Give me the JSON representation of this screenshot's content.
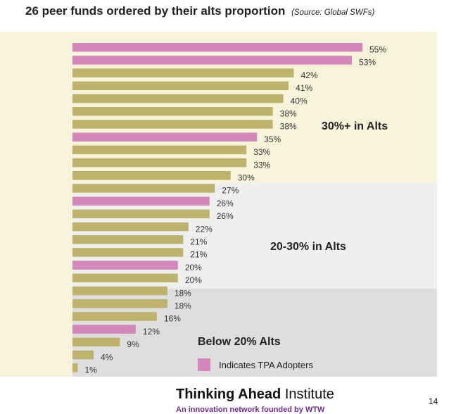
{
  "title": "26 peer funds ordered by their alts proportion",
  "source": "(Source: Global SWFs)",
  "colors": {
    "tpa": "#d487b8",
    "other": "#bdb36c"
  },
  "chart_data": {
    "type": "bar",
    "orientation": "horizontal",
    "title": "26 peer funds ordered by their alts proportion",
    "xlabel": "",
    "ylabel": "",
    "xlim": [
      0,
      60
    ],
    "grid": false,
    "values": [
      55,
      53,
      42,
      41,
      40,
      38,
      38,
      35,
      33,
      33,
      30,
      27,
      26,
      26,
      22,
      21,
      21,
      20,
      20,
      18,
      18,
      16,
      12,
      9,
      4,
      1
    ],
    "labels": [
      "55%",
      "53%",
      "42%",
      "41%",
      "40%",
      "38%",
      "38%",
      "35%",
      "33%",
      "33%",
      "30%",
      "27%",
      "26%",
      "26%",
      "22%",
      "21%",
      "21%",
      "20%",
      "20%",
      "18%",
      "18%",
      "16%",
      "12%",
      "9%",
      "4%",
      "1%"
    ],
    "tpa_adopter": [
      true,
      true,
      false,
      false,
      false,
      false,
      false,
      true,
      false,
      false,
      false,
      false,
      true,
      false,
      false,
      false,
      false,
      true,
      false,
      false,
      false,
      false,
      true,
      false,
      false,
      false
    ],
    "zones": [
      "30%+ in Alts",
      "20-30% in Alts",
      "Below 20% Alts"
    ],
    "legend": "Indicates TPA Adopters"
  },
  "footer": {
    "brand_bold": "Thinking Ahead",
    "brand_rest": "Institute",
    "subtitle": "An innovation network founded by WTW",
    "page": "14"
  }
}
